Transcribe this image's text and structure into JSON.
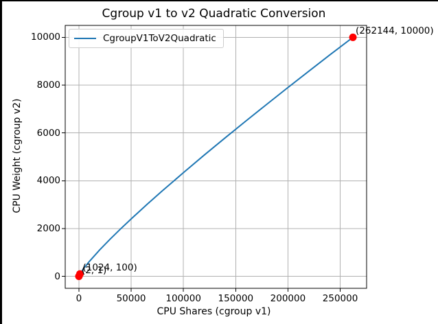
{
  "window": {
    "background": "#ffffff",
    "border_color": "#000000"
  },
  "chart_data": {
    "type": "line",
    "title": "Cgroup v1 to v2 Quadratic Conversion",
    "xlabel": "CPU Shares (cgroup v1)",
    "ylabel": "CPU Weight (cgroup v2)",
    "grid": true,
    "grid_color": "#b0b0b0",
    "legend": {
      "position": "upper left",
      "entries": [
        {
          "label": "CgroupV1ToV2Quadratic",
          "color": "#1f77b4"
        }
      ]
    },
    "xlim": [
      -13105,
      275249
    ],
    "ylim": [
      -501,
      10499
    ],
    "x_ticks": {
      "values": [
        0,
        50000,
        100000,
        150000,
        200000,
        250000
      ],
      "labels": [
        "0",
        "50000",
        "100000",
        "150000",
        "200000",
        "250000"
      ]
    },
    "y_ticks": {
      "values": [
        0,
        2000,
        4000,
        6000,
        8000,
        10000
      ],
      "labels": [
        "0",
        "2000",
        "4000",
        "6000",
        "8000",
        "10000"
      ]
    },
    "series": [
      {
        "name": "CgroupV1ToV2Quadratic",
        "color": "#1f77b4",
        "x": [
          2,
          1024,
          2500,
          5000,
          10000,
          20000,
          30000,
          40000,
          50000,
          65536,
          80000,
          100000,
          120000,
          140000,
          160000,
          180000,
          200000,
          220000,
          240000,
          262144
        ],
        "y": [
          1,
          100,
          203,
          355,
          626,
          1112,
          1561,
          1989,
          2402,
          3023,
          3584,
          4339,
          5077,
          5797,
          6508,
          7208,
          7899,
          8583,
          9260,
          10000
        ]
      }
    ],
    "points": [
      {
        "x": 2,
        "y": 1,
        "label": "(2, 1)",
        "color": "#ff0000"
      },
      {
        "x": 1024,
        "y": 100,
        "label": "(1024, 100)",
        "color": "#ff0000"
      },
      {
        "x": 262144,
        "y": 10000,
        "label": "(262144, 10000)",
        "color": "#ff0000"
      }
    ]
  }
}
